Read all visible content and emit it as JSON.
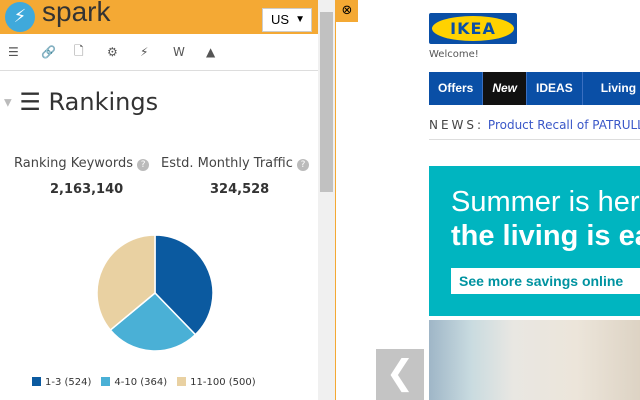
{
  "spark": {
    "logo": "spark",
    "country": "US",
    "toolbar": [
      "rankings-icon",
      "links-icon",
      "page-icon",
      "settings-icon",
      "lightning-icon",
      "word-icon",
      "flask-icon"
    ],
    "section_title": "Rankings",
    "keywords_label": "Ranking Keywords",
    "keywords_value": "2,163,140",
    "traffic_label": "Estd. Monthly Traffic",
    "traffic_value": "324,528"
  },
  "chart_data": {
    "type": "pie",
    "categories": [
      "1-3 (524)",
      "4-10 (364)",
      "11-100 (500)"
    ],
    "values": [
      524,
      364,
      500
    ],
    "colors": [
      "#0b5aa0",
      "#4ab0d6",
      "#e9d1a2"
    ],
    "legend": "bottom"
  },
  "site": {
    "logo": "IKEA",
    "welcome": "Welcome!",
    "nav": [
      "Offers",
      "New",
      "IDEAS",
      "Living"
    ],
    "news_label": "NEWS:",
    "news_link": "Product Recall of PATRULL",
    "banner_line1": "Summer is here",
    "banner_line2": "the living is easy",
    "banner_button": "See more savings online"
  }
}
